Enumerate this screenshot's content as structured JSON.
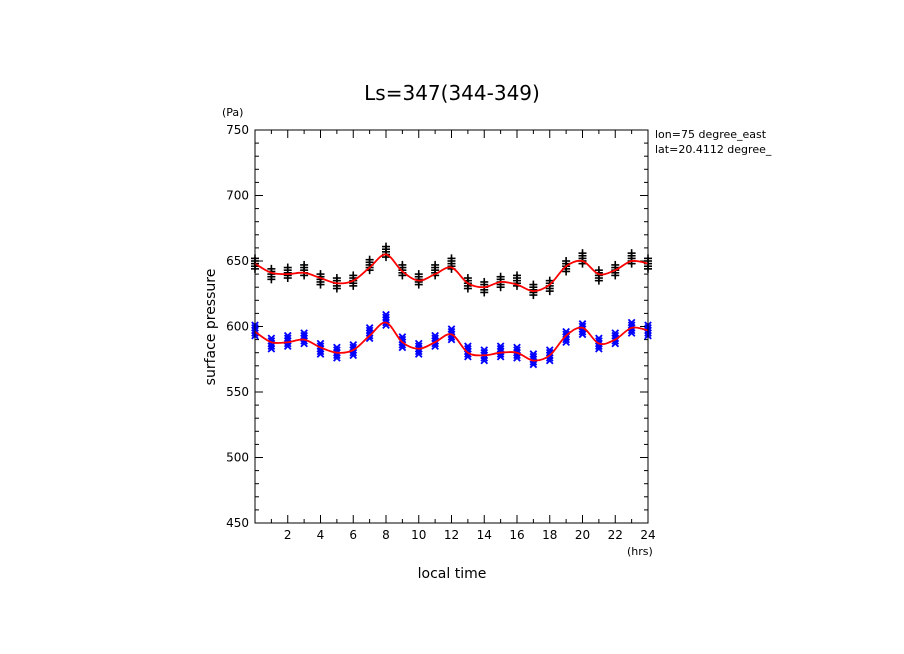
{
  "chart_data": {
    "type": "scatter",
    "title": "Ls=347(344-349)",
    "xlabel": "local time",
    "ylabel": "surface pressure",
    "x_unit": "(hrs)",
    "y_unit": "(Pa)",
    "xlim": [
      0,
      24
    ],
    "ylim": [
      450,
      750
    ],
    "x_ticks": [
      2,
      4,
      6,
      8,
      10,
      12,
      14,
      16,
      18,
      20,
      22,
      24
    ],
    "y_ticks": [
      450,
      500,
      550,
      600,
      650,
      700,
      750
    ],
    "annotations": [
      "lon=75 degree_east",
      "lat=20.4112 degree_"
    ],
    "grid": false,
    "colors": {
      "upper_points": "#000000",
      "lower_points": "#0000ff",
      "fit": "#ff0000"
    },
    "x": [
      0,
      1,
      2,
      3,
      4,
      5,
      6,
      7,
      8,
      9,
      10,
      11,
      12,
      13,
      14,
      15,
      16,
      17,
      18,
      19,
      20,
      21,
      22,
      23,
      24
    ],
    "series": [
      {
        "marker": "plus",
        "spread": [
          648,
          640,
          641,
          643,
          636,
          633,
          635,
          647,
          657,
          643,
          636,
          643,
          648,
          633,
          630,
          634,
          635,
          628,
          631,
          646,
          652,
          639,
          643,
          652,
          648
        ],
        "fit": [
          648,
          641,
          640,
          641,
          637,
          633,
          635,
          645,
          655,
          642,
          635,
          640,
          645,
          633,
          630,
          634,
          632,
          627,
          632,
          646,
          650,
          640,
          643,
          650,
          648
        ]
      },
      {
        "marker": "x",
        "spread": [
          597,
          587,
          589,
          591,
          583,
          580,
          582,
          595,
          605,
          588,
          583,
          589,
          594,
          581,
          578,
          581,
          580,
          575,
          578,
          592,
          598,
          587,
          591,
          599,
          597
        ],
        "fit": [
          596,
          588,
          588,
          590,
          584,
          580,
          582,
          593,
          603,
          588,
          583,
          588,
          594,
          580,
          578,
          580,
          580,
          574,
          578,
          593,
          599,
          587,
          590,
          599,
          597
        ]
      }
    ]
  }
}
